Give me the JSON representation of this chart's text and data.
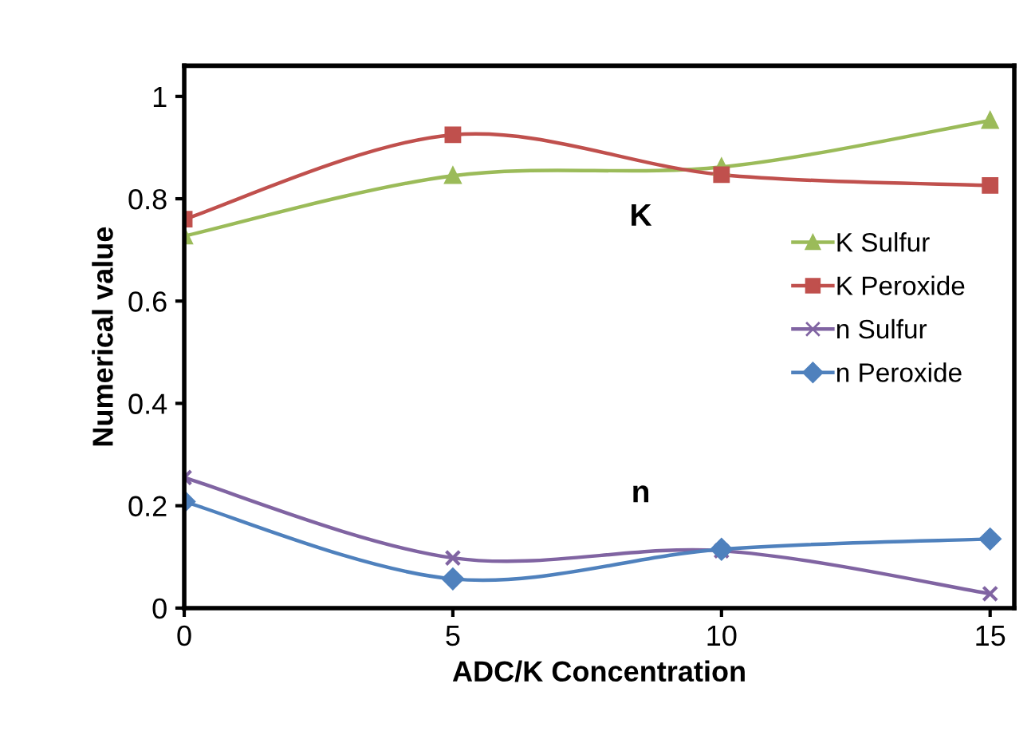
{
  "chart_data": {
    "type": "line",
    "xlabel": "ADC/K Concentration",
    "ylabel": "Numerical value",
    "x": [
      0,
      5,
      10,
      15
    ],
    "xlim": [
      0,
      15.45
    ],
    "xticks": [
      0,
      5,
      10,
      15
    ],
    "ylim": [
      0,
      1.06
    ],
    "yticks": [
      0,
      0.2,
      0.4,
      0.6,
      0.8,
      1
    ],
    "series": [
      {
        "name": "K Sulfur",
        "color": "#9bbb59",
        "marker": "triangle",
        "values": [
          0.727,
          0.845,
          0.862,
          0.953
        ]
      },
      {
        "name": "K Peroxide",
        "color": "#c0504d",
        "marker": "square",
        "values": [
          0.76,
          0.925,
          0.847,
          0.826
        ]
      },
      {
        "name": "n Sulfur",
        "color": "#8064a2",
        "marker": "cross",
        "values": [
          0.255,
          0.098,
          0.112,
          0.028
        ]
      },
      {
        "name": "n Peroxide",
        "color": "#4f81bd",
        "marker": "diamond",
        "values": [
          0.208,
          0.057,
          0.115,
          0.135
        ]
      }
    ],
    "annotations": [
      "K",
      "n"
    ],
    "grid": false,
    "legend": "right",
    "line_style": "solid"
  }
}
